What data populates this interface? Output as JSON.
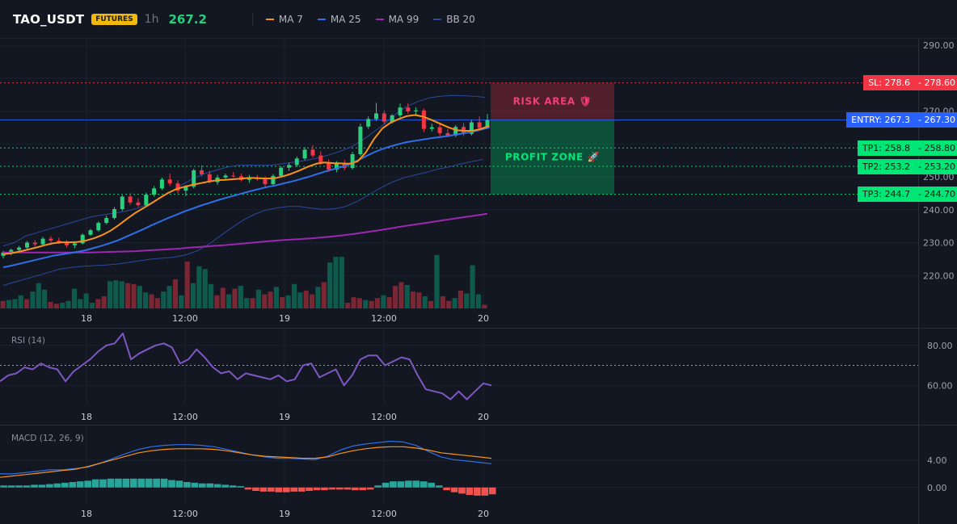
{
  "header": {
    "symbol": "TAO_USDT",
    "badge": "FUTURES",
    "timeframe": "1h",
    "price": "267.2",
    "legend": [
      {
        "label": "MA 7",
        "color": "#f7931a"
      },
      {
        "label": "MA 25",
        "color": "#2f6fe8"
      },
      {
        "label": "MA 99",
        "color": "#9c27b0"
      },
      {
        "label": "BB 20",
        "color": "#2a4a9e"
      }
    ]
  },
  "chart_data": [
    {
      "type": "candlestick",
      "panel": "price",
      "ylim": [
        210,
        292
      ],
      "yticks": [
        "290.00",
        "280.00",
        "270.00",
        "260.00",
        "250.00",
        "240.00",
        "230.00",
        "220.00"
      ],
      "xticks": [
        "18",
        "12:00",
        "19",
        "12:00",
        "20"
      ],
      "candles": [
        [
          226,
          227.5,
          225.2,
          227
        ],
        [
          227,
          228.2,
          226.2,
          227.8
        ],
        [
          227.8,
          229,
          227,
          228.5
        ],
        [
          228.5,
          230.5,
          228,
          230
        ],
        [
          230,
          230.8,
          228.8,
          229.5
        ],
        [
          229.5,
          231.8,
          229.2,
          231.2
        ],
        [
          231.2,
          232,
          230,
          230.6
        ],
        [
          230.6,
          231.5,
          229.6,
          230.2
        ],
        [
          230.2,
          230.8,
          228.5,
          229.2
        ],
        [
          229.2,
          230.4,
          228.3,
          229.8
        ],
        [
          229.8,
          232.8,
          229.5,
          232.4
        ],
        [
          232.4,
          234.2,
          232,
          233.8
        ],
        [
          233.8,
          236.5,
          233.3,
          236
        ],
        [
          236,
          238.2,
          235.5,
          237.5
        ],
        [
          237.5,
          240.8,
          237,
          240.2
        ],
        [
          240.2,
          244.5,
          239.6,
          244
        ],
        [
          244,
          245,
          241.5,
          242.2
        ],
        [
          242.2,
          243.5,
          240.8,
          241.4
        ],
        [
          241.4,
          245.2,
          241,
          244.6
        ],
        [
          244.6,
          247.2,
          244,
          246.5
        ],
        [
          246.5,
          249.8,
          246,
          249.2
        ],
        [
          249.2,
          251,
          247.2,
          248
        ],
        [
          248,
          249,
          245,
          245.8
        ],
        [
          245.8,
          247.5,
          244.2,
          247
        ],
        [
          247,
          252.5,
          246.5,
          252
        ],
        [
          252,
          253.5,
          250.2,
          250.8
        ],
        [
          250.8,
          251.8,
          248,
          248.4
        ],
        [
          248.4,
          250.6,
          247.6,
          249.8
        ],
        [
          249.8,
          251,
          249,
          250.4
        ],
        [
          250.4,
          251.5,
          249.7,
          250.2
        ],
        [
          250.2,
          251,
          248.6,
          249.1
        ],
        [
          249.1,
          250.6,
          248.2,
          249.6
        ],
        [
          249.6,
          250.6,
          248.7,
          249.3
        ],
        [
          249.3,
          250.2,
          246.7,
          247.8
        ],
        [
          247.8,
          250.9,
          247.2,
          250.3
        ],
        [
          250.3,
          253.2,
          249.8,
          252.8
        ],
        [
          252.8,
          254.3,
          251.8,
          253.6
        ],
        [
          253.6,
          256.2,
          253,
          255.6
        ],
        [
          255.6,
          259,
          255,
          258.3
        ],
        [
          258.3,
          259.6,
          255.9,
          256.5
        ],
        [
          256.5,
          257.8,
          253.7,
          254.4
        ],
        [
          254.4,
          255.3,
          251.5,
          252.2
        ],
        [
          252.2,
          254.8,
          251.4,
          254.1
        ],
        [
          254.1,
          255.2,
          252,
          252.7
        ],
        [
          252.7,
          257.6,
          252.2,
          256.9
        ],
        [
          256.9,
          266.2,
          256.4,
          265.3
        ],
        [
          265.3,
          268.4,
          264.6,
          267.6
        ],
        [
          267.6,
          272.5,
          267,
          269.3
        ],
        [
          269.3,
          270.2,
          266.1,
          266.8
        ],
        [
          266.8,
          269.1,
          266.2,
          268.7
        ],
        [
          268.7,
          272.3,
          268.1,
          271.1
        ],
        [
          271.1,
          272.4,
          269.2,
          269.9
        ],
        [
          269.9,
          271.2,
          268.7,
          270.2
        ],
        [
          270.2,
          270.8,
          263.6,
          264.6
        ],
        [
          264.6,
          266.2,
          263.8,
          265.1
        ],
        [
          265.1,
          266.4,
          262.4,
          263.3
        ],
        [
          263.3,
          264.6,
          262,
          262.6
        ],
        [
          262.6,
          265.8,
          262.1,
          265.2
        ],
        [
          265.2,
          266.4,
          262.4,
          263.1
        ],
        [
          263.1,
          267.3,
          262.6,
          266.6
        ],
        [
          266.6,
          268.4,
          264.2,
          264.9
        ],
        [
          264.9,
          269.2,
          264.5,
          267.2
        ]
      ],
      "volume": [
        8,
        9,
        10,
        14,
        10,
        18,
        27,
        20,
        7,
        5,
        6,
        8,
        21,
        10,
        16,
        6,
        10,
        13,
        29,
        30,
        29,
        27,
        26,
        24,
        17,
        15,
        11,
        18,
        24,
        31,
        14,
        50,
        27,
        45,
        42,
        26,
        14,
        22,
        15,
        21,
        24,
        11,
        11,
        20,
        15,
        18,
        23,
        12,
        14,
        26,
        17,
        19,
        15,
        23,
        28,
        49,
        55,
        55,
        6,
        12,
        11,
        9,
        8,
        11,
        14,
        12,
        24,
        28,
        25,
        18,
        17,
        13,
        8,
        57,
        13,
        8,
        11,
        19,
        16,
        46,
        15,
        4
      ],
      "volume_up": [
        0,
        1,
        1,
        1,
        0,
        1,
        1,
        1,
        0,
        0,
        1,
        1,
        1,
        1,
        1,
        1,
        0,
        0,
        1,
        1,
        1,
        0,
        0,
        1,
        1,
        0,
        0,
        1,
        1,
        0,
        1,
        0,
        1,
        1,
        1,
        1,
        0,
        0,
        1,
        0,
        1,
        1,
        0,
        1,
        0,
        0,
        1,
        0,
        1,
        1,
        1,
        0,
        0,
        1,
        0,
        1,
        1,
        1,
        0,
        0,
        0,
        1,
        0,
        0,
        1,
        0,
        0,
        0,
        1,
        0,
        0,
        1,
        0,
        1,
        0,
        0,
        1,
        0,
        1,
        1,
        1,
        0
      ],
      "ma7": [
        226.5,
        226.8,
        227.3,
        227.9,
        228.5,
        229.2,
        229.8,
        230.1,
        230.1,
        230.2,
        230.6,
        231.3,
        232.3,
        233.6,
        235.3,
        237.2,
        239,
        240.5,
        242,
        243.6,
        245.1,
        246.3,
        247,
        247.6,
        248.1,
        248.6,
        249,
        249.1,
        249.3,
        249.5,
        249.7,
        249.6,
        249.5,
        249.6,
        250.2,
        251,
        252,
        253.1,
        254,
        254.4,
        254.2,
        254.1,
        254,
        254.7,
        257.4,
        261.5,
        264.7,
        266.5,
        267.6,
        268.5,
        268.8,
        268.3,
        267.3,
        266.2,
        265.1,
        264.2,
        264,
        264,
        264.6,
        265.5
      ],
      "ma25": [
        222.5,
        223,
        223.6,
        224.2,
        224.8,
        225.4,
        226,
        226.4,
        226.8,
        227.2,
        227.7,
        228.4,
        229.1,
        229.9,
        230.8,
        231.9,
        233,
        234.1,
        235.3,
        236.4,
        237.5,
        238.5,
        239.5,
        240.4,
        241.3,
        242.1,
        242.9,
        243.6,
        244.3,
        245,
        245.7,
        246.3,
        246.9,
        247.4,
        248,
        248.6,
        249.3,
        250,
        250.8,
        251.6,
        252.3,
        253,
        253.9,
        255,
        256.3,
        257.5,
        258.5,
        259.3,
        260,
        260.6,
        261,
        261.4,
        261.8,
        262.1,
        262.5,
        262.9,
        263.3,
        263.8,
        264.4,
        265.1
      ],
      "ma99": [
        227,
        227,
        227,
        227,
        227,
        227,
        227,
        227,
        227,
        227.1,
        227.2,
        227.3,
        227.4,
        227.6,
        227.8,
        228,
        228.2,
        228.5,
        228.7,
        229,
        229.2,
        229.5,
        229.8,
        230.1,
        230.4,
        230.7,
        230.9,
        231.1,
        231.3,
        231.6,
        231.9,
        232.3,
        232.7,
        233.2,
        233.7,
        234.2,
        234.8,
        235.3,
        235.8,
        236.3,
        236.8,
        237.3,
        237.8,
        238.3,
        238.8
      ],
      "bb_upper": [
        229,
        230,
        232,
        233,
        234,
        235,
        236,
        237,
        238,
        238.5,
        239,
        239.6,
        240.5,
        241.8,
        243.5,
        245.5,
        247.7,
        249.6,
        251,
        252,
        253,
        253.5,
        253.6,
        253.5,
        253.6,
        254,
        254.5,
        255,
        255.7,
        256.6,
        257.7,
        259,
        261,
        263.5,
        266,
        269,
        271.4,
        272.9,
        274,
        274.5,
        274.8,
        274.7,
        274.5,
        274.2
      ],
      "bb_lower": [
        217,
        218,
        219,
        220,
        221,
        222,
        222.5,
        222.8,
        223,
        223.2,
        223.5,
        224,
        224.5,
        225,
        225.3,
        225.6,
        226.3,
        227.5,
        229.5,
        232,
        234.5,
        236.8,
        238.6,
        239.9,
        240.6,
        241,
        241,
        240.5,
        240.1,
        240.3,
        241,
        242.5,
        244.5,
        246.5,
        248.3,
        249.6,
        250.5,
        251.3,
        252.3,
        253,
        253.9,
        254.6,
        255.3
      ],
      "levels": [
        {
          "label": "SL: 278.6",
          "price_label": "278.60",
          "value": 278.6,
          "color": "#f23645",
          "style": "dotted"
        },
        {
          "label": "ENTRY: 267.3",
          "price_label": "267.30",
          "value": 267.3,
          "color": "#2962ff",
          "style": "solid"
        },
        {
          "label": "TP1: 258.8",
          "price_label": "258.80",
          "value": 258.8,
          "color": "#00e676",
          "style": "dotted"
        },
        {
          "label": "TP2: 253.2",
          "price_label": "253.20",
          "value": 253.2,
          "color": "#00e676",
          "style": "dotted"
        },
        {
          "label": "TP3: 244.7",
          "price_label": "244.70",
          "value": 244.7,
          "color": "#00e676",
          "style": "dotted"
        }
      ],
      "zones": [
        {
          "label": "RISK AREA",
          "icon": "🛡",
          "from": 267.3,
          "to": 278.6,
          "color": "#f23645"
        },
        {
          "label": "PROFIT ZONE",
          "icon": "🚀",
          "from": 244.7,
          "to": 267.3,
          "color": "#00e676"
        }
      ]
    },
    {
      "type": "line",
      "panel": "rsi",
      "title": "RSI (14)",
      "ylim": [
        50,
        88
      ],
      "yticks": [
        "80.00",
        "60.00"
      ],
      "reference_line": 70,
      "xticks": [
        "18",
        "12:00",
        "19",
        "12:00",
        "20"
      ],
      "values": [
        62,
        65,
        66,
        69,
        68,
        71,
        69,
        68,
        62,
        67,
        70,
        73,
        77,
        80,
        81,
        86,
        73,
        76,
        78,
        80,
        81,
        79,
        71,
        73,
        78,
        74,
        69,
        66,
        67,
        63,
        66,
        65,
        64,
        63,
        65,
        62,
        63,
        70,
        71,
        64,
        66,
        68,
        60,
        65,
        73,
        75,
        75,
        70,
        72,
        74,
        73,
        65,
        58,
        57,
        56,
        53,
        57,
        53,
        57,
        61,
        60
      ]
    },
    {
      "type": "mixed",
      "panel": "macd",
      "title": "MACD (12, 26, 9)",
      "ylim": [
        -2.4,
        9
      ],
      "yticks": [
        "4.00",
        "0.00"
      ],
      "xticks": [
        "18",
        "12:00",
        "19",
        "12:00",
        "20"
      ],
      "macd": [
        2,
        2,
        2.2,
        2.4,
        2.6,
        2.6,
        2.8,
        3,
        3.6,
        4.3,
        5,
        5.6,
        6,
        6.2,
        6.3,
        6.3,
        6.2,
        6,
        5.6,
        5.2,
        4.8,
        4.5,
        4.3,
        4.3,
        4.2,
        4.1,
        4.6,
        5.5,
        6.1,
        6.4,
        6.6,
        6.8,
        6.7,
        6.2,
        5.3,
        4.5,
        4.1,
        3.9,
        3.7,
        3.5
      ],
      "signal": [
        1.5,
        1.7,
        1.9,
        2.1,
        2.3,
        2.5,
        2.7,
        3.1,
        3.6,
        4.1,
        4.6,
        5.1,
        5.4,
        5.6,
        5.7,
        5.7,
        5.7,
        5.6,
        5.4,
        5.1,
        4.8,
        4.6,
        4.5,
        4.4,
        4.3,
        4.3,
        4.5,
        5,
        5.4,
        5.7,
        5.9,
        6,
        6,
        5.8,
        5.5,
        5.1,
        4.9,
        4.7,
        4.5,
        4.3
      ],
      "histogram": [
        0.3,
        0.3,
        0.3,
        0.3,
        0.4,
        0.4,
        0.5,
        0.6,
        0.7,
        0.8,
        0.9,
        1,
        1.2,
        1.2,
        1.3,
        1.3,
        1.3,
        1.3,
        1.3,
        1.3,
        1.3,
        1.3,
        1.1,
        1,
        0.8,
        0.7,
        0.6,
        0.6,
        0.5,
        0.4,
        0.3,
        0.2,
        -0.3,
        -0.5,
        -0.6,
        -0.6,
        -0.7,
        -0.7,
        -0.6,
        -0.6,
        -0.5,
        -0.4,
        -0.4,
        -0.3,
        -0.3,
        -0.3,
        -0.4,
        -0.4,
        -0.3,
        0.3,
        0.7,
        0.9,
        0.9,
        1,
        1,
        0.9,
        0.7,
        0.3,
        -0.4,
        -0.7,
        -0.9,
        -1.1,
        -1.2,
        -1.2,
        -1.0
      ]
    }
  ]
}
